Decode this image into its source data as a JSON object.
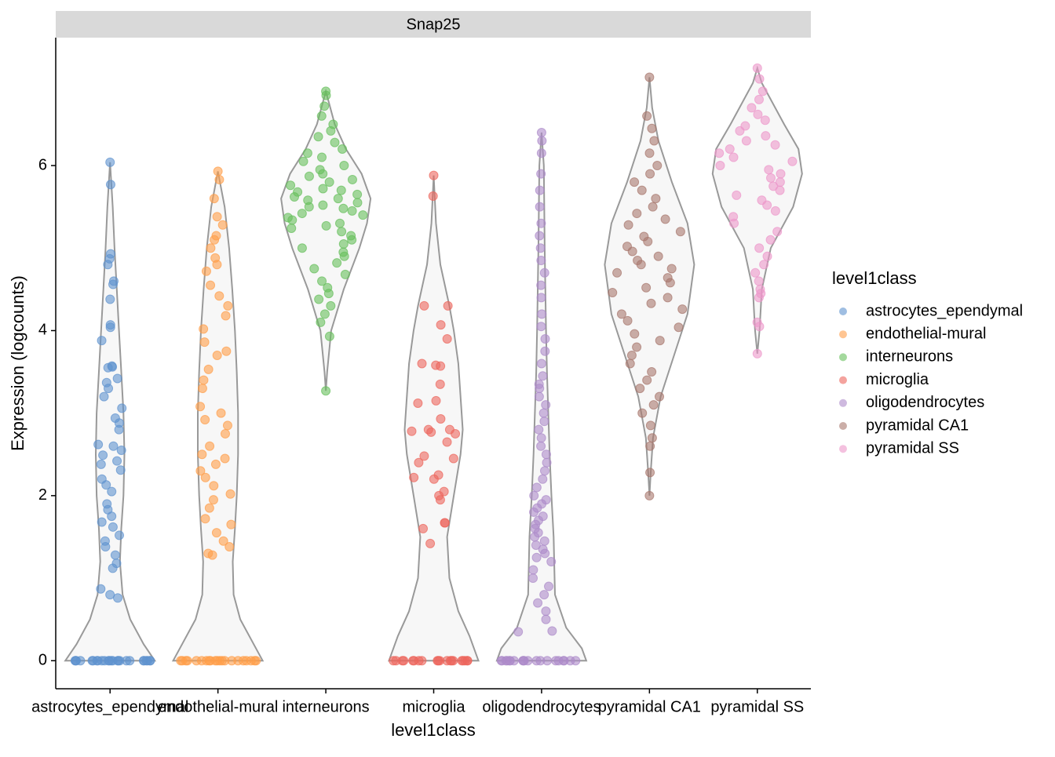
{
  "chart_data": {
    "type": "violin",
    "title": "Snap25",
    "y_label": "Expression (logcounts)",
    "x_label": "level1class",
    "legend_title": "level1class",
    "categories": [
      "astrocytes_ependymal",
      "endothelial-mural",
      "interneurons",
      "microglia",
      "oligodendrocytes",
      "pyramidal CA1",
      "pyramidal SS"
    ],
    "ylim": [
      -0.34,
      7.55
    ],
    "yticks": [
      0,
      2,
      4,
      6
    ],
    "series": [
      {
        "name": "astrocytes_ependymal",
        "color": "#5f93cf",
        "values": [
          6.04,
          5.77,
          4.93,
          4.87,
          4.8,
          4.6,
          4.56,
          4.38,
          4.07,
          4.04,
          3.88,
          3.57,
          3.56,
          3.55,
          3.42,
          3.37,
          3.3,
          3.2,
          3.06,
          2.94,
          2.88,
          2.8,
          2.62,
          2.6,
          2.55,
          2.49,
          2.42,
          2.38,
          2.31,
          2.2,
          2.13,
          2.05,
          1.9,
          1.83,
          1.75,
          1.68,
          1.62,
          1.52,
          1.45,
          1.38,
          1.28,
          1.18,
          1.12,
          0.87,
          0.8,
          0.76,
          0,
          0,
          0,
          0,
          0,
          0,
          0,
          0,
          0,
          0,
          0,
          0,
          0,
          0,
          0,
          0,
          0,
          0,
          0,
          0,
          0,
          0,
          0,
          0,
          0
        ],
        "violin": {
          "y": [
            0,
            0.2,
            0.5,
            0.8,
            1.2,
            1.6,
            2.0,
            2.5,
            3.0,
            3.5,
            4.0,
            4.5,
            5.0,
            5.5,
            6.04
          ],
          "width": [
            1,
            0.75,
            0.45,
            0.28,
            0.22,
            0.25,
            0.3,
            0.32,
            0.3,
            0.25,
            0.2,
            0.15,
            0.1,
            0.06,
            0
          ]
        }
      },
      {
        "name": "endothelial-mural",
        "color": "#ff9e4a",
        "values": [
          5.93,
          5.83,
          5.6,
          5.38,
          5.28,
          5.15,
          5.1,
          5.0,
          4.88,
          4.8,
          4.72,
          4.55,
          4.42,
          4.3,
          4.18,
          4.02,
          3.86,
          3.75,
          3.7,
          3.53,
          3.4,
          3.3,
          3.08,
          3.0,
          2.92,
          2.85,
          2.75,
          2.6,
          2.5,
          2.45,
          2.38,
          2.3,
          2.22,
          2.12,
          2.02,
          1.95,
          1.85,
          1.72,
          1.65,
          1.55,
          1.45,
          1.38,
          1.3,
          1.28,
          0,
          0,
          0,
          0,
          0,
          0,
          0,
          0,
          0,
          0,
          0,
          0,
          0,
          0,
          0,
          0,
          0,
          0,
          0,
          0,
          0
        ],
        "violin": {
          "y": [
            0,
            0.2,
            0.5,
            0.8,
            1.2,
            1.6,
            2.0,
            2.5,
            3.0,
            3.5,
            4.0,
            4.5,
            5.0,
            5.5,
            5.93
          ],
          "width": [
            1,
            0.8,
            0.5,
            0.35,
            0.33,
            0.38,
            0.42,
            0.45,
            0.45,
            0.42,
            0.38,
            0.32,
            0.25,
            0.15,
            0
          ]
        }
      },
      {
        "name": "interneurons",
        "color": "#67bf5c",
        "values": [
          6.9,
          6.85,
          6.72,
          6.6,
          6.5,
          6.42,
          6.35,
          6.28,
          6.2,
          6.15,
          6.1,
          6.05,
          6.0,
          5.95,
          5.9,
          5.87,
          5.83,
          5.8,
          5.76,
          5.72,
          5.7,
          5.68,
          5.65,
          5.62,
          5.6,
          5.58,
          5.55,
          5.52,
          5.5,
          5.48,
          5.45,
          5.42,
          5.4,
          5.37,
          5.34,
          5.3,
          5.27,
          5.24,
          5.2,
          5.15,
          5.1,
          5.05,
          5.0,
          4.95,
          4.9,
          4.82,
          4.75,
          4.68,
          4.6,
          4.52,
          4.45,
          4.38,
          4.3,
          4.2,
          4.1,
          3.93,
          3.27
        ],
        "violin": {
          "y": [
            3.27,
            3.5,
            4.0,
            4.5,
            5.0,
            5.3,
            5.6,
            5.9,
            6.2,
            6.5,
            6.9
          ],
          "width": [
            0,
            0.03,
            0.12,
            0.4,
            0.75,
            0.92,
            1,
            0.8,
            0.45,
            0.2,
            0
          ]
        }
      },
      {
        "name": "microglia",
        "color": "#ed665d",
        "values": [
          5.88,
          5.63,
          4.3,
          4.3,
          4.07,
          3.9,
          3.6,
          3.58,
          3.57,
          3.35,
          3.15,
          3.12,
          2.93,
          2.8,
          2.8,
          2.78,
          2.77,
          2.75,
          2.65,
          2.48,
          2.45,
          2.4,
          2.25,
          2.22,
          2.2,
          2.05,
          2.0,
          1.95,
          1.67,
          1.67,
          1.6,
          1.42,
          0,
          0,
          0,
          0,
          0,
          0,
          0,
          0,
          0,
          0,
          0,
          0,
          0,
          0,
          0,
          0,
          0,
          0,
          0,
          0
        ],
        "violin": {
          "y": [
            0,
            0.3,
            0.6,
            1.0,
            1.5,
            2.0,
            2.5,
            2.8,
            3.2,
            3.6,
            4.0,
            4.3,
            4.8,
            5.3,
            5.88
          ],
          "width": [
            1,
            0.8,
            0.55,
            0.35,
            0.3,
            0.45,
            0.6,
            0.65,
            0.6,
            0.55,
            0.45,
            0.35,
            0.15,
            0.05,
            0
          ]
        }
      },
      {
        "name": "oligodendrocytes",
        "color": "#ad8bc9",
        "values": [
          6.4,
          6.3,
          6.15,
          5.9,
          5.7,
          5.5,
          5.3,
          5.15,
          5.0,
          4.85,
          4.7,
          4.55,
          4.4,
          4.2,
          4.05,
          3.9,
          3.75,
          3.6,
          3.45,
          3.35,
          3.3,
          3.2,
          3.1,
          3.0,
          2.9,
          2.8,
          2.7,
          2.6,
          2.5,
          2.4,
          2.3,
          2.2,
          2.1,
          2.0,
          1.95,
          1.9,
          1.85,
          1.8,
          1.75,
          1.7,
          1.65,
          1.6,
          1.55,
          1.5,
          1.45,
          1.4,
          1.35,
          1.3,
          1.25,
          1.2,
          1.1,
          1.0,
          0.9,
          0.8,
          0.7,
          0.6,
          0.5,
          0.36,
          0.35,
          0,
          0,
          0,
          0,
          0,
          0,
          0,
          0,
          0,
          0,
          0,
          0,
          0,
          0,
          0,
          0,
          0,
          0,
          0,
          0
        ],
        "violin": {
          "y": [
            0,
            0.15,
            0.4,
            0.8,
            1.5,
            2.0,
            2.5,
            3.0,
            3.5,
            4.0,
            5.0,
            6.0,
            6.4
          ],
          "width": [
            1,
            0.9,
            0.55,
            0.3,
            0.27,
            0.22,
            0.18,
            0.15,
            0.12,
            0.1,
            0.07,
            0.05,
            0
          ]
        }
      },
      {
        "name": "pyramidal CA1",
        "color": "#a8786e",
        "values": [
          7.07,
          6.6,
          6.45,
          6.3,
          6.15,
          6.0,
          5.9,
          5.8,
          5.7,
          5.6,
          5.5,
          5.42,
          5.35,
          5.28,
          5.2,
          5.14,
          5.08,
          5.02,
          4.96,
          4.9,
          4.85,
          4.8,
          4.75,
          4.7,
          4.64,
          4.58,
          4.52,
          4.46,
          4.4,
          4.33,
          4.26,
          4.2,
          4.12,
          4.04,
          3.96,
          3.88,
          3.8,
          3.7,
          3.6,
          3.5,
          3.4,
          3.3,
          3.2,
          3.1,
          3.0,
          2.85,
          2.7,
          2.6,
          2.28,
          2.0
        ],
        "violin": {
          "y": [
            2.0,
            2.3,
            2.7,
            3.2,
            3.7,
            4.2,
            4.8,
            5.3,
            5.8,
            6.3,
            6.7,
            7.07
          ],
          "width": [
            0,
            0.03,
            0.08,
            0.25,
            0.55,
            0.85,
            1,
            0.85,
            0.5,
            0.2,
            0.06,
            0
          ]
        }
      },
      {
        "name": "pyramidal SS",
        "color": "#ed97ca",
        "values": [
          7.18,
          7.05,
          6.9,
          6.8,
          6.7,
          6.62,
          6.55,
          6.48,
          6.42,
          6.36,
          6.3,
          6.25,
          6.2,
          6.15,
          6.1,
          6.05,
          6.0,
          5.95,
          5.9,
          5.85,
          5.8,
          5.75,
          5.7,
          5.64,
          5.58,
          5.52,
          5.45,
          5.38,
          5.3,
          5.2,
          5.1,
          5.0,
          4.9,
          4.8,
          4.7,
          4.6,
          4.5,
          4.45,
          4.4,
          4.1,
          4.05,
          3.72
        ],
        "violin": {
          "y": [
            3.72,
            4.0,
            4.5,
            5.0,
            5.5,
            5.9,
            6.2,
            6.5,
            6.8,
            7.0,
            7.18
          ],
          "width": [
            0,
            0.05,
            0.1,
            0.3,
            0.8,
            1,
            0.92,
            0.6,
            0.3,
            0.1,
            0
          ]
        }
      }
    ]
  }
}
